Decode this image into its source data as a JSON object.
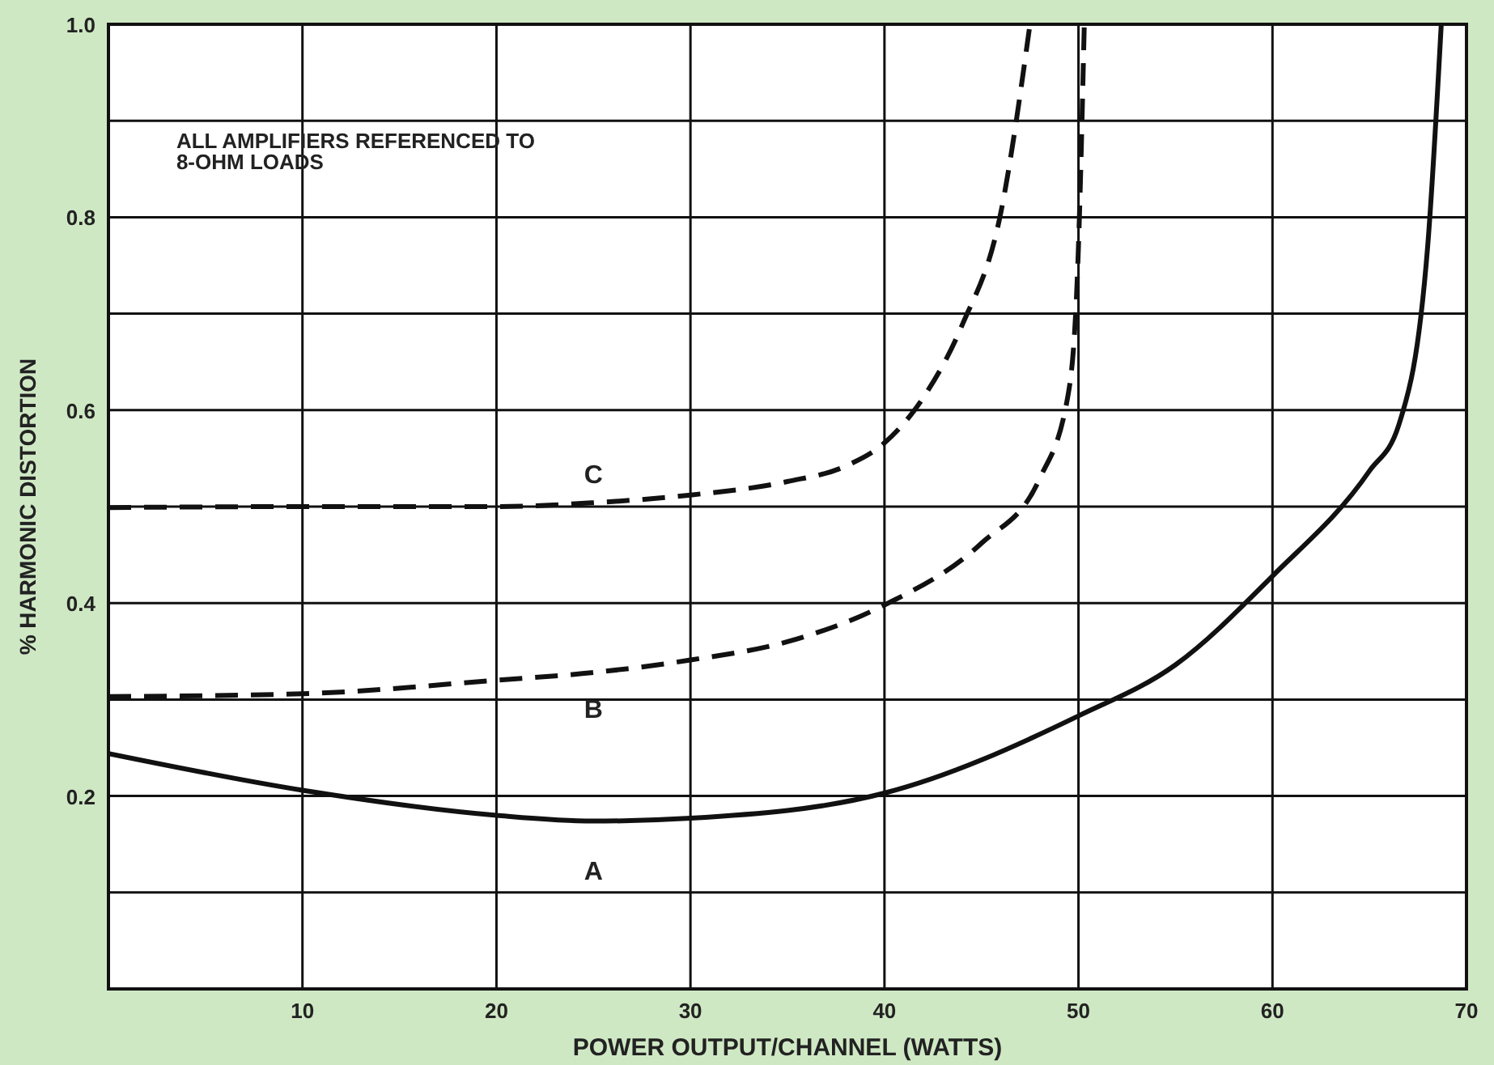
{
  "chart_data": {
    "type": "line",
    "xlabel": "POWER OUTPUT/CHANNEL (WATTS)",
    "ylabel": "% HARMONIC DISTORTION",
    "xlim": [
      0,
      70
    ],
    "xticks": [
      10,
      20,
      30,
      40,
      50,
      60,
      70
    ],
    "ylim": [
      0,
      1
    ],
    "yticks": [
      {
        "value": 0.1,
        "label": null
      },
      0.2,
      {
        "value": 0.3,
        "label": null
      },
      0.4,
      {
        "value": 0.5,
        "label": null
      },
      0.6,
      {
        "value": 0.7,
        "label": null
      },
      0.8,
      {
        "value": 0.9,
        "label": null
      },
      {
        "value": 1,
        "label": "1.0"
      }
    ],
    "grid": true,
    "series": [
      {
        "name": "A",
        "color": "#111111",
        "line_style": "solid",
        "x": [
          0,
          10,
          20,
          25,
          30,
          40,
          50,
          55,
          60,
          65,
          66.5,
          68,
          68.7
        ],
        "values": [
          0.244,
          0.206,
          0.18,
          0.174,
          0.177,
          0.203,
          0.283,
          0.336,
          0.428,
          0.537,
          0.584,
          0.77,
          1.0
        ]
      },
      {
        "name": "B",
        "color": "#111111",
        "line_style": "dashed",
        "x": [
          0,
          10,
          20,
          25,
          30,
          35,
          40,
          45,
          48,
          49.5,
          50,
          50.3
        ],
        "values": [
          0.303,
          0.306,
          0.32,
          0.328,
          0.341,
          0.36,
          0.398,
          0.462,
          0.529,
          0.62,
          0.77,
          1.0
        ]
      },
      {
        "name": "C",
        "color": "#111111",
        "line_style": "dashed",
        "x": [
          0,
          10,
          20,
          25,
          30,
          35,
          38,
          40,
          42,
          44,
          46,
          47.5
        ],
        "values": [
          0.499,
          0.5,
          0.5,
          0.504,
          0.512,
          0.526,
          0.542,
          0.566,
          0.613,
          0.688,
          0.805,
          1.0
        ]
      }
    ],
    "annotations": [
      "ALL AMPLIFIERS REFERENCED TO\n8-OHM LOADS"
    ]
  }
}
